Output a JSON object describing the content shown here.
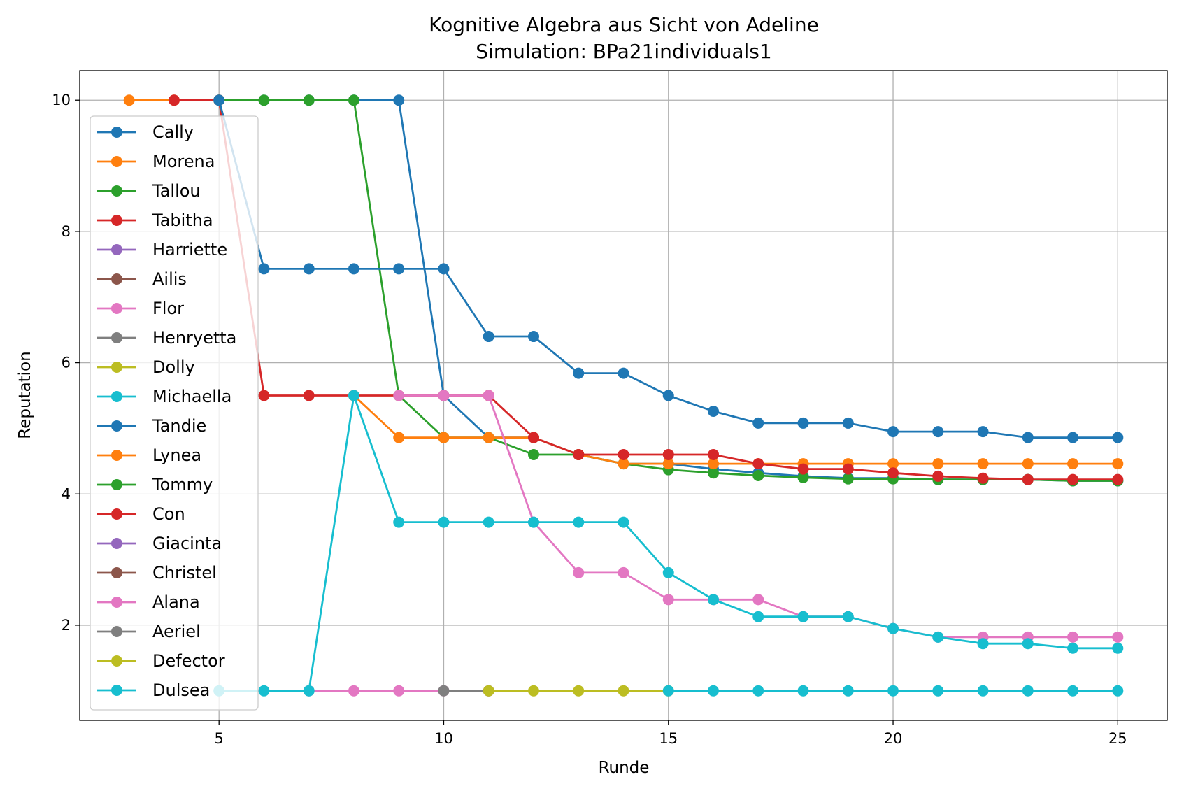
{
  "chart_data": {
    "type": "line",
    "title": "Kognitive Algebra aus Sicht von Adeline",
    "subtitle": "Simulation: BPa21individuals1",
    "xlabel": "Runde",
    "ylabel": "Reputation",
    "xlim": [
      1.9,
      26.1
    ],
    "ylim": [
      0.55,
      10.45
    ],
    "xticks": [
      5,
      10,
      15,
      20,
      25
    ],
    "yticks": [
      2,
      4,
      6,
      8,
      10
    ],
    "grid": true,
    "legend_position": "upper-left",
    "series": [
      {
        "name": "Cally",
        "color": "#1f77b4",
        "x": [
          6,
          7,
          8,
          9,
          10,
          11,
          12,
          13,
          14,
          15,
          16,
          17,
          18,
          19,
          20,
          21,
          22,
          23,
          24,
          25
        ],
        "y": [
          10,
          10,
          10,
          10,
          5.5,
          4.86,
          4.86,
          4.6,
          4.46,
          4.46,
          4.38,
          4.32,
          4.27,
          4.24,
          4.24,
          4.22,
          4.22,
          4.22,
          4.2,
          4.2
        ]
      },
      {
        "name": "Morena",
        "color": "#ff7f0e",
        "x": [
          3,
          4,
          5
        ],
        "y": [
          10,
          10,
          10
        ]
      },
      {
        "name": "Tallou",
        "color": "#2ca02c",
        "x": [
          5,
          6,
          7,
          8,
          9,
          10,
          11,
          12,
          13,
          14,
          15,
          16,
          17,
          18,
          19,
          20,
          21,
          22,
          23,
          24,
          25
        ],
        "y": [
          10,
          10,
          10,
          10,
          5.5,
          4.86,
          4.86,
          4.6,
          4.6,
          4.46,
          4.37,
          4.32,
          4.28,
          4.25,
          4.23,
          4.23,
          4.22,
          4.22,
          4.22,
          4.2,
          4.2
        ]
      },
      {
        "name": "Tabitha",
        "color": "#d62728",
        "x": [
          4,
          5,
          6,
          7,
          8,
          9,
          10,
          11
        ],
        "y": [
          10,
          10,
          5.5,
          5.5,
          5.5,
          5.5,
          5.5,
          5.5
        ]
      },
      {
        "name": "Harriette",
        "color": "#9467bd",
        "x": [],
        "y": []
      },
      {
        "name": "Ailis",
        "color": "#8c564b",
        "x": [],
        "y": []
      },
      {
        "name": "Flor",
        "color": "#e377c2",
        "x": [
          7,
          8,
          9,
          10,
          11
        ],
        "y": [
          1,
          1,
          1,
          1,
          1
        ]
      },
      {
        "name": "Henryetta",
        "color": "#7f7f7f",
        "x": [
          10,
          11
        ],
        "y": [
          1,
          1
        ]
      },
      {
        "name": "Dolly",
        "color": "#bcbd22",
        "x": [
          11,
          12,
          13,
          14,
          15
        ],
        "y": [
          1,
          1,
          1,
          1,
          1
        ]
      },
      {
        "name": "Michaella",
        "color": "#17becf",
        "x": [
          15,
          16,
          17,
          18,
          19,
          20,
          21,
          22,
          23,
          24,
          25
        ],
        "y": [
          1,
          1,
          1,
          1,
          1,
          1,
          1,
          1,
          1,
          1,
          1
        ]
      },
      {
        "name": "Tandie",
        "color": "#1f77b4",
        "x": [
          5,
          6,
          7,
          8,
          9,
          10,
          11,
          12,
          13,
          14,
          15,
          16,
          17,
          18,
          19,
          20,
          21,
          22,
          23,
          24,
          25
        ],
        "y": [
          10,
          7.43,
          7.43,
          7.43,
          7.43,
          7.43,
          6.4,
          6.4,
          5.84,
          5.84,
          5.5,
          5.26,
          5.08,
          5.08,
          5.08,
          4.95,
          4.95,
          4.95,
          4.86,
          4.86,
          4.86
        ]
      },
      {
        "name": "Lynea",
        "color": "#ff7f0e",
        "x": [
          8,
          9,
          10,
          11,
          12,
          13,
          14,
          15,
          16,
          17,
          18,
          19,
          20,
          21,
          22,
          23,
          24,
          25
        ],
        "y": [
          5.5,
          4.86,
          4.86,
          4.86,
          4.86,
          4.6,
          4.46,
          4.46,
          4.46,
          4.46,
          4.46,
          4.46,
          4.46,
          4.46,
          4.46,
          4.46,
          4.46,
          4.46
        ]
      },
      {
        "name": "Tommy",
        "color": "#2ca02c",
        "x": [],
        "y": []
      },
      {
        "name": "Con",
        "color": "#d62728",
        "x": [
          11,
          12,
          13,
          14,
          15,
          16,
          17,
          18,
          19,
          20,
          21,
          22,
          23,
          24,
          25
        ],
        "y": [
          5.5,
          4.86,
          4.6,
          4.6,
          4.6,
          4.6,
          4.46,
          4.38,
          4.38,
          4.32,
          4.27,
          4.24,
          4.22,
          4.22,
          4.22
        ]
      },
      {
        "name": "Giacinta",
        "color": "#9467bd",
        "x": [],
        "y": []
      },
      {
        "name": "Christel",
        "color": "#8c564b",
        "x": [],
        "y": []
      },
      {
        "name": "Alana",
        "color": "#e377c2",
        "x": [
          9,
          10,
          11,
          12,
          13,
          14,
          15,
          16,
          17,
          18,
          19,
          20,
          21,
          22,
          23,
          24,
          25
        ],
        "y": [
          5.5,
          5.5,
          5.5,
          3.57,
          2.8,
          2.8,
          2.39,
          2.39,
          2.39,
          2.13,
          2.13,
          1.95,
          1.82,
          1.82,
          1.82,
          1.82,
          1.82
        ]
      },
      {
        "name": "Aeriel",
        "color": "#7f7f7f",
        "x": [],
        "y": []
      },
      {
        "name": "Defector",
        "color": "#bcbd22",
        "x": [],
        "y": []
      },
      {
        "name": "Dulsea",
        "color": "#17becf",
        "x": [
          5,
          6,
          7,
          8,
          9,
          10,
          11,
          12,
          13,
          14,
          15,
          16,
          17,
          18,
          19,
          20,
          21,
          22,
          23,
          24,
          25
        ],
        "y": [
          1,
          1,
          1,
          5.5,
          3.57,
          3.57,
          3.57,
          3.57,
          3.57,
          3.57,
          2.8,
          2.39,
          2.13,
          2.13,
          2.13,
          1.95,
          1.82,
          1.72,
          1.72,
          1.65,
          1.65
        ]
      }
    ]
  }
}
